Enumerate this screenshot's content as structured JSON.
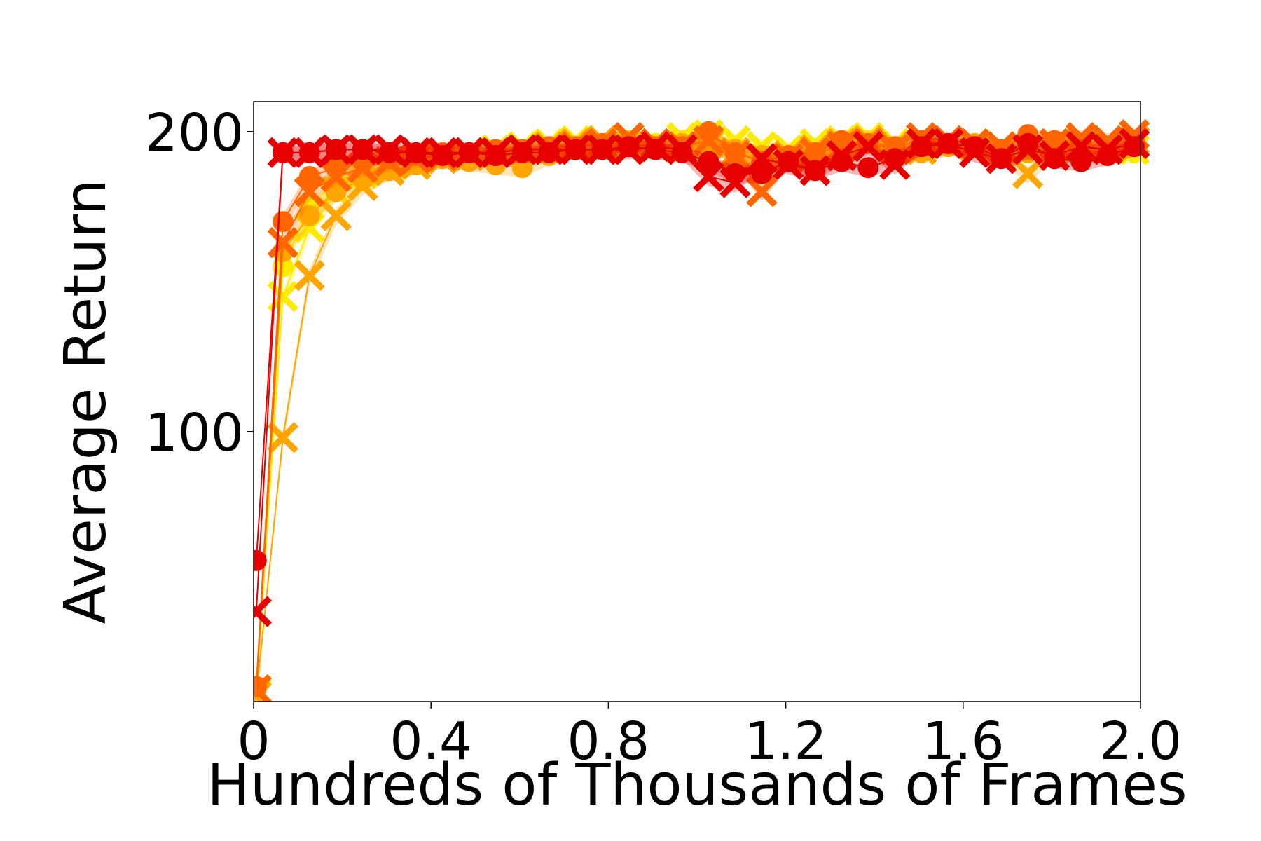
{
  "chart_data": {
    "type": "line",
    "title": "",
    "xlabel": "Hundreds of Thousands of Frames",
    "ylabel": "Average Return",
    "xlim": [
      0,
      2.0
    ],
    "ylim": [
      10,
      210
    ],
    "x_ticks": [
      0,
      0.4,
      0.8,
      1.2,
      1.6,
      2.0
    ],
    "x_tick_labels": [
      "0",
      "0.4",
      "0.8",
      "1.2",
      "1.6",
      "2.0"
    ],
    "y_ticks": [
      100,
      200
    ],
    "y_tick_labels": [
      "100",
      "200"
    ],
    "grid": false,
    "legend": "none",
    "x": [
      0.006,
      0.066,
      0.126,
      0.186,
      0.246,
      0.306,
      0.366,
      0.426,
      0.486,
      0.546,
      0.606,
      0.666,
      0.726,
      0.786,
      0.846,
      0.906,
      0.966,
      1.026,
      1.086,
      1.146,
      1.206,
      1.266,
      1.326,
      1.386,
      1.446,
      1.506,
      1.566,
      1.626,
      1.686,
      1.746,
      1.806,
      1.866,
      1.926,
      1.986
    ],
    "series": [
      {
        "color": "#ffea00",
        "marker": "circle",
        "values": [
          15,
          155,
          175,
          183,
          188,
          190,
          191,
          192,
          193,
          194,
          192,
          193,
          195,
          196,
          197,
          196,
          197,
          196,
          195,
          193,
          192,
          194,
          196,
          197,
          195,
          194,
          196,
          195,
          194,
          193,
          195,
          196,
          194,
          193
        ]
      },
      {
        "color": "#ffea00",
        "marker": "x",
        "values": [
          13,
          145,
          168,
          180,
          186,
          189,
          190,
          192,
          193,
          194,
          195,
          196,
          197,
          196,
          195,
          196,
          198,
          199,
          197,
          195,
          194,
          196,
          197,
          198,
          196,
          195,
          197,
          196,
          195,
          194,
          196,
          197,
          195,
          194
        ]
      },
      {
        "color": "#ffa500",
        "marker": "circle",
        "values": [
          14,
          160,
          172,
          180,
          184,
          187,
          189,
          191,
          190,
          189,
          188,
          192,
          194,
          195,
          196,
          195,
          196,
          197,
          194,
          192,
          191,
          193,
          195,
          196,
          194,
          193,
          195,
          196,
          194,
          193,
          195,
          196,
          194,
          196
        ]
      },
      {
        "color": "#ffa500",
        "marker": "x",
        "values": [
          12,
          98,
          152,
          172,
          182,
          187,
          189,
          191,
          192,
          193,
          194,
          195,
          196,
          197,
          198,
          196,
          195,
          196,
          193,
          191,
          192,
          194,
          196,
          197,
          195,
          194,
          196,
          195,
          193,
          186,
          194,
          196,
          195,
          197
        ]
      },
      {
        "color": "#ff6600",
        "marker": "circle",
        "values": [
          15,
          170,
          185,
          188,
          190,
          191,
          192,
          193,
          193,
          194,
          194,
          195,
          195,
          196,
          196,
          195,
          195,
          200,
          193,
          190,
          192,
          193,
          197,
          196,
          195,
          197,
          196,
          195,
          194,
          199,
          197,
          196,
          195,
          197
        ]
      },
      {
        "color": "#ff6600",
        "marker": "x",
        "values": [
          14,
          163,
          180,
          185,
          188,
          190,
          191,
          192,
          193,
          193,
          194,
          194,
          195,
          196,
          198,
          196,
          195,
          197,
          192,
          180,
          191,
          193,
          195,
          196,
          194,
          198,
          197,
          196,
          195,
          194,
          196,
          198,
          197,
          199
        ]
      },
      {
        "color": "#e60000",
        "marker": "circle",
        "values": [
          57,
          193,
          193,
          194,
          194,
          193,
          193,
          192,
          193,
          192,
          193,
          193,
          194,
          194,
          195,
          194,
          193,
          190,
          186,
          186,
          190,
          187,
          190,
          188,
          191,
          195,
          196,
          195,
          191,
          196,
          191,
          190,
          192,
          195
        ]
      },
      {
        "color": "#e60000",
        "marker": "x",
        "values": [
          40,
          193,
          193,
          194,
          194,
          194,
          193,
          193,
          193,
          193,
          194,
          194,
          194,
          194,
          194,
          195,
          194,
          185,
          183,
          191,
          189,
          187,
          192,
          195,
          189,
          196,
          196,
          193,
          191,
          194,
          192,
          195,
          194,
          196
        ]
      }
    ]
  }
}
